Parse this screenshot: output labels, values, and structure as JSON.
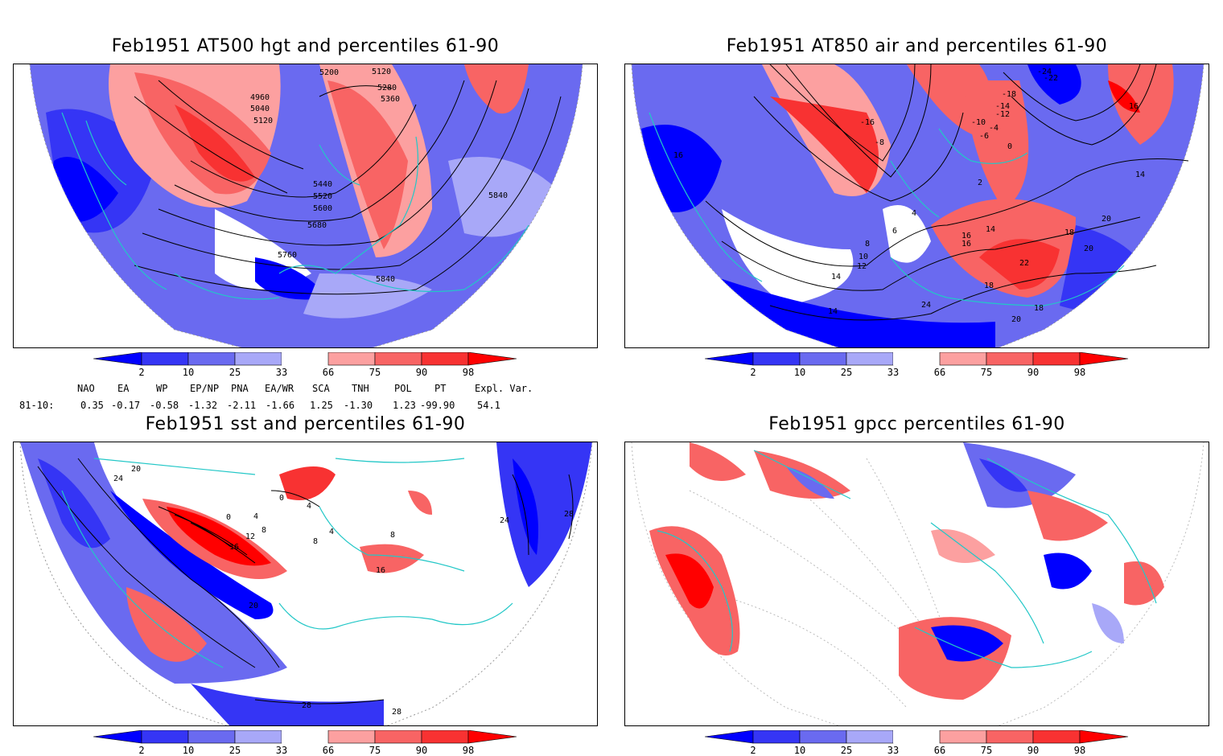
{
  "colors": {
    "blue_dark": "#0000ff",
    "blue_2": "#3535f5",
    "blue_3": "#6a6af0",
    "blue_4": "#a8a8f8",
    "red_4": "#fca0a0",
    "red_3": "#f86464",
    "red_2": "#f83232",
    "red_dark": "#ff0000",
    "coast": "#22c7c7"
  },
  "panels": [
    {
      "id": "hgt",
      "title": "Feb1951 AT500 hgt and percentiles 61-90",
      "contour_labels": [
        "5200",
        "5120",
        "4960",
        "5040",
        "5120",
        "5280",
        "5360",
        "5440",
        "5520",
        "5600",
        "5680",
        "5760",
        "5840",
        "5840"
      ]
    },
    {
      "id": "air",
      "title": "Feb1951 AT850 air and percentiles 61-90",
      "contour_labels": [
        "-24",
        "-22",
        "-18",
        "-16",
        "-14",
        "-12",
        "-10",
        "-8",
        "-6",
        "-4",
        "0",
        "2",
        "4",
        "6",
        "8",
        "10",
        "12",
        "14",
        "14",
        "16",
        "16",
        "18",
        "20",
        "22",
        "24",
        "16",
        "18",
        "20",
        "14",
        "16",
        "20",
        "14"
      ]
    },
    {
      "id": "sst",
      "title": "Feb1951 sst and percentiles 61-90",
      "contour_labels": [
        "24",
        "20",
        "0",
        "4",
        "8",
        "12",
        "16",
        "20",
        "0",
        "4",
        "8",
        "4",
        "8",
        "16",
        "24",
        "28",
        "28",
        "28"
      ]
    },
    {
      "id": "gpcc",
      "title": "Feb1951 gpcc percentiles 61-90",
      "contour_labels": []
    }
  ],
  "colorbar": {
    "ticks": [
      "2",
      "10",
      "25",
      "33",
      "66",
      "75",
      "90",
      "98"
    ]
  },
  "indices": {
    "headers": [
      "NAO",
      "EA",
      "WP",
      "EP/NP",
      "PNA",
      "EA/WR",
      "SCA",
      "TNH",
      "POL",
      "PT",
      "Expl. Var."
    ],
    "row_label": "81-10:",
    "values": [
      "0.35",
      "-0.17",
      "-0.58",
      "-1.32",
      "-2.11",
      "-1.66",
      "1.25",
      "-1.30",
      "1.23",
      "-99.90",
      "54.1"
    ]
  }
}
